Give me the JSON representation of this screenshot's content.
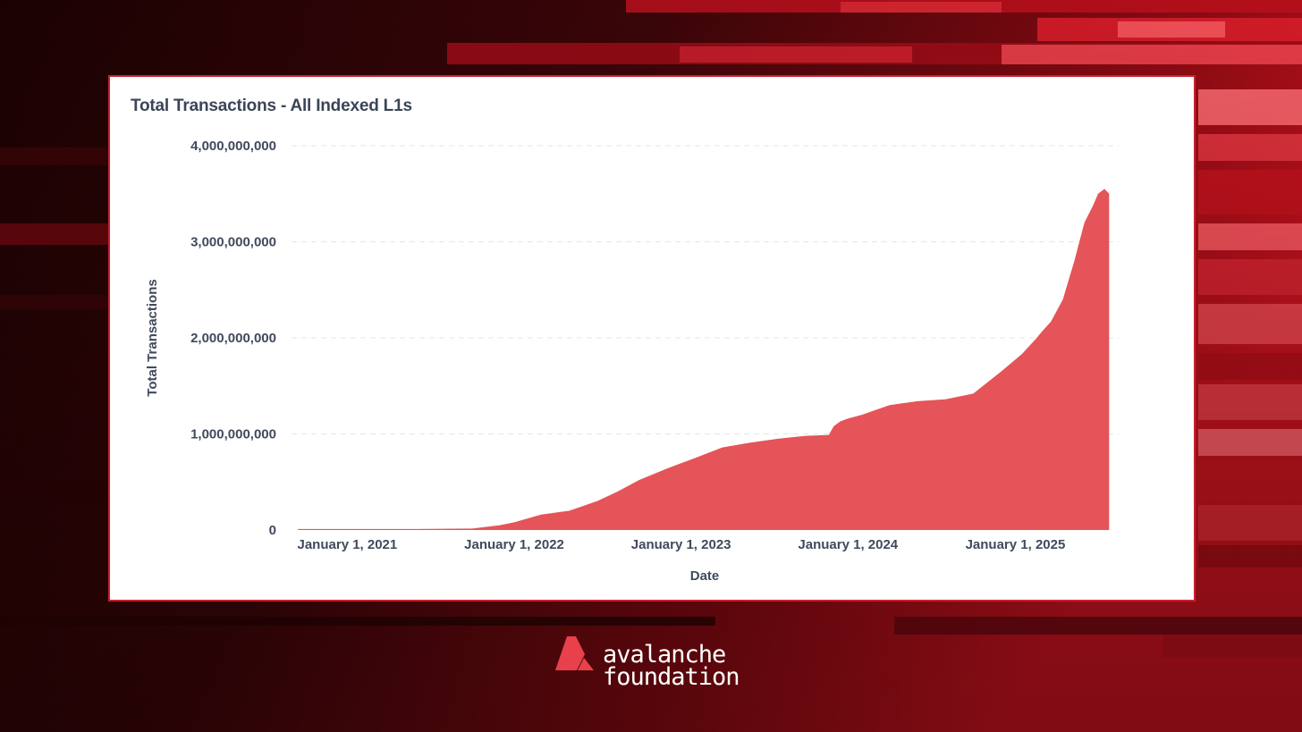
{
  "colors": {
    "area_fill": "#e55458",
    "card_border": "#c8202f",
    "text": "#3f4a5d",
    "grid": "#e6e6e6",
    "background": "#2a0306",
    "logo_red": "#e8414b"
  },
  "icons": {
    "brand_mark": "avalanche-triangle-logo-icon"
  },
  "brand": {
    "line1": "avalanche",
    "line2": "foundation"
  },
  "chart_data": {
    "type": "area",
    "title": "Total Transactions - All Indexed L1s",
    "xlabel": "Date",
    "ylabel": "Total Transactions",
    "xlim": [
      "2020-09-01",
      "2025-08-15"
    ],
    "ylim": [
      0,
      4000000000
    ],
    "grid": "horizontal dashed",
    "legend": "none",
    "y_ticks": [
      {
        "value": 0,
        "label": "0"
      },
      {
        "value": 1000000000,
        "label": "1,000,000,000"
      },
      {
        "value": 2000000000,
        "label": "2,000,000,000"
      },
      {
        "value": 3000000000,
        "label": "3,000,000,000"
      },
      {
        "value": 4000000000,
        "label": "4,000,000,000"
      }
    ],
    "x_ticks": [
      {
        "value": "2021-01-01",
        "label": "January 1, 2021"
      },
      {
        "value": "2022-01-01",
        "label": "January 1, 2022"
      },
      {
        "value": "2023-01-01",
        "label": "January 1, 2023"
      },
      {
        "value": "2024-01-01",
        "label": "January 1, 2024"
      },
      {
        "value": "2025-01-01",
        "label": "January 1, 2025"
      }
    ],
    "series": [
      {
        "x": [
          "2020-09-15",
          "2021-06-01",
          "2021-10-01",
          "2021-12-01",
          "2022-01-01",
          "2022-03-01",
          "2022-05-01",
          "2022-07-01",
          "2022-08-15",
          "2022-10-01",
          "2022-12-01",
          "2023-02-01",
          "2023-04-01",
          "2023-06-01",
          "2023-08-01",
          "2023-10-01",
          "2023-11-20",
          "2023-12-01",
          "2023-12-15",
          "2024-01-01",
          "2024-02-01",
          "2024-04-01",
          "2024-06-01",
          "2024-08-01",
          "2024-10-01",
          "2024-12-01",
          "2025-01-15",
          "2025-02-15",
          "2025-03-01",
          "2025-03-20",
          "2025-04-15",
          "2025-05-10",
          "2025-06-01",
          "2025-06-20",
          "2025-07-01",
          "2025-07-15",
          "2025-07-25"
        ],
        "values": [
          10000000,
          10000000,
          15000000,
          50000000,
          80000000,
          160000000,
          200000000,
          300000000,
          400000000,
          520000000,
          640000000,
          750000000,
          860000000,
          910000000,
          950000000,
          980000000,
          990000000,
          1080000000,
          1130000000,
          1160000000,
          1200000000,
          1300000000,
          1340000000,
          1360000000,
          1420000000,
          1650000000,
          1830000000,
          1990000000,
          2070000000,
          2170000000,
          2400000000,
          2800000000,
          3200000000,
          3380000000,
          3500000000,
          3550000000,
          3500000000
        ]
      }
    ]
  }
}
